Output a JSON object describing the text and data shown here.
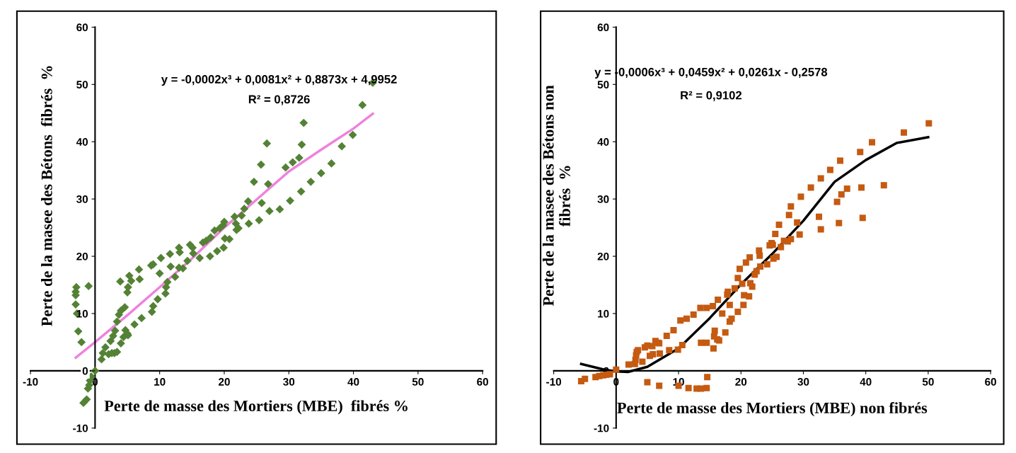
{
  "chart_data": [
    {
      "type": "scatter",
      "xlabel": "Perte de masse des Mortiers (MBE)  fibrés %",
      "ylabel": "Perte de la masee des Bétons  fibrés  %",
      "xlim": [
        -10,
        60
      ],
      "ylim": [
        -10,
        60
      ],
      "xticks": [
        -10,
        0,
        10,
        20,
        30,
        40,
        50,
        60
      ],
      "yticks": [
        -10,
        0,
        10,
        20,
        30,
        40,
        50,
        60
      ],
      "grid": false,
      "legend": false,
      "annotations": [
        "y = -0,0002x³ + 0,0081x² + 0,8873x + 4,9952",
        "R² = 0,8726"
      ],
      "series": [
        {
          "marker": "diamond",
          "color": "#548235",
          "x": [
            -2.9,
            -3.0,
            -3.0,
            -3.0,
            -2.8,
            -2.6,
            -2.1,
            -1.0,
            -0.6,
            -0.8,
            -0.9,
            -1.1,
            -1.3,
            -1.8,
            0,
            1.0,
            1.2,
            1.6,
            2.1,
            2.6,
            3.0,
            3.4,
            2.4,
            2.8,
            3.1,
            3.4,
            3.7,
            4.0,
            4.6,
            3.9,
            4.0,
            4.4,
            4.7,
            5.0,
            5.1,
            5.0,
            5.1,
            5.3,
            5.6,
            6.1,
            6.8,
            6.9,
            7.2,
            8.7,
            9.0,
            8.8,
            9.0,
            9.7,
            10.0,
            10.2,
            10.9,
            11.0,
            11.2,
            11.6,
            11.7,
            12.4,
            13.0,
            13.1,
            13.0,
            13.6,
            14.3,
            14.7,
            15.1,
            15.2,
            16.2,
            16.7,
            17.2,
            17.8,
            17.9,
            18.5,
            18.9,
            19.3,
            19.8,
            20.0,
            19.9,
            20.1,
            20.8,
            21.6,
            21.8,
            21.9,
            22.2,
            22.7,
            23.1,
            23.7,
            23.8,
            24.6,
            25.4,
            25.7,
            25.8,
            26.6,
            26.8,
            27.0,
            28.6,
            29.5,
            30.2,
            30.6,
            31.6,
            31.9,
            32.0,
            32.3,
            33.4,
            35.0,
            36.6,
            38.2,
            39.9,
            41.4,
            43.0
          ],
          "values": [
            14.6,
            13.8,
            13.2,
            11.6,
            10.0,
            6.9,
            5.0,
            14.8,
            -1.0,
            -1.7,
            -2.5,
            -3.1,
            -5.0,
            -5.6,
            0,
            2.0,
            3.1,
            4.1,
            2.9,
            3.1,
            3.1,
            3.3,
            5.2,
            6.1,
            7.0,
            8.6,
            9.8,
            10.5,
            11.1,
            15.6,
            4.8,
            5.9,
            7.1,
            6.5,
            6.2,
            13.7,
            14.6,
            16.6,
            15.7,
            8.1,
            17.7,
            16.0,
            9.2,
            18.4,
            18.6,
            10.3,
            11.3,
            12.5,
            17.0,
            19.7,
            13.5,
            14.6,
            15.5,
            20.4,
            18.2,
            16.4,
            21.5,
            20.7,
            18.0,
            17.9,
            19.2,
            22.0,
            21.5,
            20.5,
            19.7,
            22.4,
            22.7,
            20.0,
            23.3,
            24.5,
            20.9,
            24.9,
            25.4,
            26.0,
            21.5,
            23.1,
            23.0,
            26.9,
            25.7,
            24.6,
            24.9,
            27.1,
            28.3,
            29.6,
            25.7,
            33.0,
            26.3,
            36.0,
            29.3,
            39.7,
            32.6,
            27.9,
            28.2,
            35.5,
            29.7,
            36.4,
            37.2,
            31.3,
            39.5,
            43.3,
            33.0,
            34.5,
            36.2,
            39.2,
            41.2,
            46.4,
            50.3
          ]
        },
        {
          "type": "line",
          "line_style": "solid",
          "color": "#ee82dd",
          "x": [
            -3,
            0,
            5,
            10,
            15,
            20,
            25,
            30,
            35,
            40,
            43
          ],
          "values": [
            2.3,
            5.0,
            9.7,
            14.6,
            19.6,
            25.0,
            29.9,
            34.8,
            38.6,
            42.3,
            44.9
          ]
        }
      ]
    },
    {
      "type": "scatter",
      "xlabel": "Perte de masse des Mortiers (MBE) non fibrés",
      "ylabel": "Perte de la masee des Bétons non\nfibrés  %",
      "xlim": [
        -10,
        60
      ],
      "ylim": [
        -10,
        60
      ],
      "xticks": [
        -10,
        0,
        10,
        20,
        30,
        40,
        50,
        60
      ],
      "yticks": [
        -10,
        0,
        10,
        20,
        30,
        40,
        50,
        60
      ],
      "grid": false,
      "legend": false,
      "annotations": [
        "y = -0,0006x³ + 0,0459x² + 0,0261x - 0,2578",
        "R² = 0,9102"
      ],
      "series": [
        {
          "marker": "square",
          "color": "#c55a11",
          "x": [
            -5.6,
            -5.0,
            -3.3,
            -2.7,
            -2.1,
            -1.6,
            -1.0,
            0,
            2.0,
            3.0,
            3.1,
            3.2,
            3.3,
            3.5,
            4.2,
            4.6,
            5.0,
            5.0,
            5.4,
            5.9,
            5.8,
            6.3,
            6.7,
            6.9,
            7.0,
            6.9,
            8.1,
            8.5,
            9.2,
            10.0,
            9.9,
            10.3,
            10.6,
            11.3,
            11.6,
            12.4,
            12.9,
            13.6,
            13.5,
            13.6,
            14.5,
            14.5,
            14.6,
            14.5,
            15.5,
            15.6,
            15.8,
            15.7,
            16.2,
            16.5,
            16.3,
            17.0,
            17.5,
            17.8,
            17.9,
            18.2,
            18.2,
            18.5,
            19.0,
            19.5,
            19.8,
            19.5,
            20.2,
            20.4,
            20.5,
            20.8,
            21.3,
            21.4,
            21.5,
            21.8,
            22.2,
            22.5,
            22.9,
            23.0,
            23.1,
            24.2,
            24.6,
            24.9,
            25.1,
            25.2,
            25.7,
            25.5,
            26.1,
            26.4,
            26.9,
            27.5,
            27.7,
            28.0,
            28.0,
            29.0,
            29.4,
            29.6,
            31.2,
            32.5,
            32.8,
            32.8,
            34.3,
            35.4,
            35.7,
            35.9,
            36.1,
            37.0,
            39.1,
            39.3,
            39.5,
            41.0,
            42.9,
            46.1,
            50.1
          ],
          "values": [
            -1.8,
            -1.4,
            -1.1,
            -0.9,
            -0.8,
            -0.7,
            -0.6,
            0.2,
            1.1,
            1.2,
            1.9,
            2.7,
            3.3,
            3.6,
            1.6,
            4.1,
            4.4,
            -2.0,
            2.6,
            2.9,
            4.3,
            5.2,
            4.9,
            4.8,
            3.0,
            -2.6,
            6.1,
            3.6,
            7.1,
            -2.6,
            3.7,
            8.8,
            4.5,
            9.1,
            -3.0,
            9.8,
            -3.1,
            -3.1,
            11.0,
            4.9,
            11.0,
            4.9,
            -1.1,
            -3.0,
            11.3,
            3.9,
            7.0,
            6.0,
            5.5,
            5.3,
            12.4,
            10.0,
            6.7,
            13.3,
            13.8,
            11.5,
            8.6,
            9.1,
            14.4,
            16.2,
            17.8,
            10.3,
            15.2,
            11.5,
            13.2,
            18.9,
            13.0,
            19.8,
            15.3,
            14.7,
            16.8,
            17.4,
            21.0,
            20.1,
            18.2,
            18.6,
            21.9,
            22.3,
            22.0,
            19.6,
            19.9,
            23.9,
            25.5,
            21.6,
            22.7,
            22.6,
            27.2,
            28.7,
            23.0,
            25.9,
            23.8,
            30.4,
            32.0,
            26.9,
            33.6,
            24.7,
            35.1,
            29.5,
            25.8,
            36.7,
            30.8,
            31.8,
            38.2,
            32.0,
            26.7,
            39.9,
            32.4,
            41.6,
            43.2
          ]
        },
        {
          "type": "line",
          "line_style": "solid",
          "color": "#000000",
          "x": [
            -5.6,
            -1.9,
            0,
            1.9,
            5,
            10,
            15,
            20,
            25,
            30,
            35,
            40,
            45,
            50
          ],
          "values": [
            1.2,
            0.2,
            -0.1,
            -0.2,
            0.7,
            3.9,
            9.2,
            15.1,
            20.4,
            26.2,
            33.0,
            36.8,
            39.8,
            40.8
          ]
        }
      ]
    }
  ]
}
